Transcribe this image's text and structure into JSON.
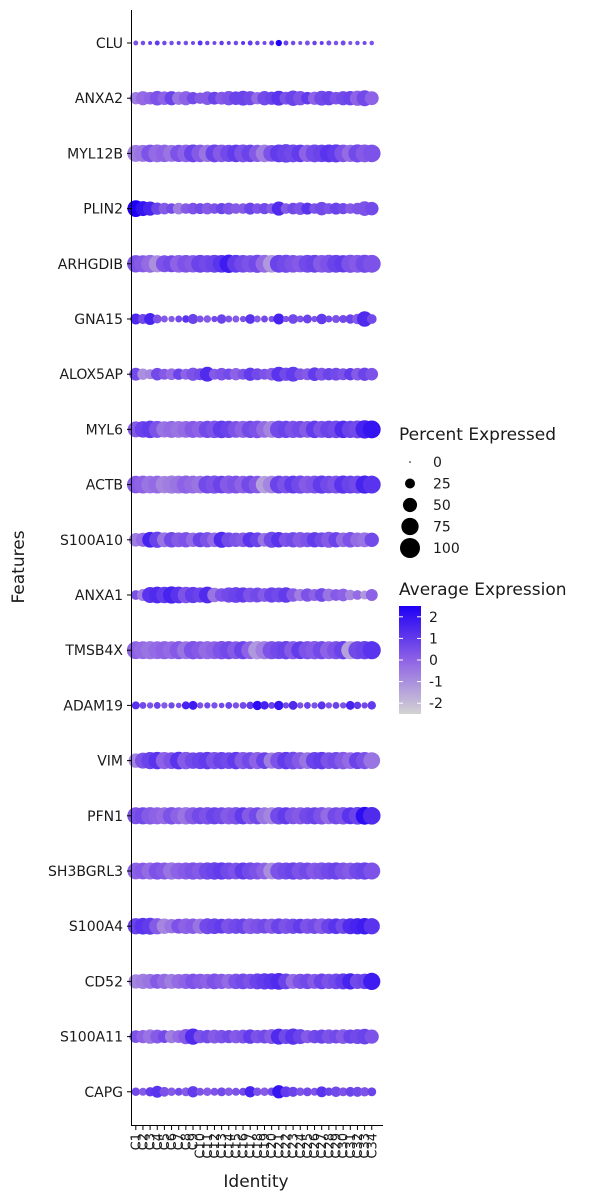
{
  "chart_data": {
    "type": "dotplot",
    "xlabel": "Identity",
    "ylabel": "Features",
    "x": [
      "C1",
      "C2",
      "C3",
      "C4",
      "C5",
      "C6",
      "C7",
      "C8",
      "C9",
      "C10",
      "C11",
      "C12",
      "C13",
      "C14",
      "C15",
      "C16",
      "C17",
      "C18",
      "C19",
      "C20",
      "C21",
      "C22",
      "C23",
      "C24",
      "C25",
      "C26",
      "C27",
      "C28",
      "C29",
      "C30",
      "C31",
      "C32",
      "C33",
      "C34"
    ],
    "features": [
      "CLU",
      "ANXA2",
      "MYL12B",
      "PLIN2",
      "ARHGDIB",
      "GNA15",
      "ALOX5AP",
      "MYL6",
      "ACTB",
      "S100A10",
      "ANXA1",
      "TMSB4X",
      "ADAM19",
      "VIM",
      "PFN1",
      "SH3BGRL3",
      "S100A4",
      "CD52",
      "S100A11",
      "CAPG"
    ],
    "size_legend": {
      "title": "Percent Expressed",
      "breaks": [
        0,
        25,
        50,
        75,
        100
      ],
      "labels": [
        "0",
        "25",
        "50",
        "75",
        "100"
      ]
    },
    "color_legend": {
      "title": "Average Expression",
      "range": [
        -2.5,
        2.5
      ],
      "breaks": [
        2,
        1,
        0,
        -1,
        -2
      ],
      "labels": [
        "2",
        "1",
        "0",
        "-1",
        "-2"
      ],
      "low_color": "#d3d3d3",
      "high_color": "#1f00f5"
    },
    "pct_expressed": [
      [
        6,
        5,
        4,
        6,
        5,
        5,
        4,
        5,
        4,
        6,
        5,
        4,
        5,
        4,
        5,
        4,
        6,
        5,
        4,
        6,
        10,
        6,
        5,
        4,
        6,
        5,
        4,
        6,
        5,
        6,
        4,
        5,
        4,
        5
      ],
      [
        38,
        50,
        40,
        54,
        46,
        50,
        44,
        50,
        38,
        32,
        46,
        42,
        42,
        52,
        46,
        56,
        50,
        38,
        52,
        44,
        56,
        42,
        60,
        52,
        40,
        44,
        56,
        52,
        40,
        50,
        52,
        58,
        64,
        48
      ],
      [
        72,
        72,
        78,
        80,
        76,
        72,
        74,
        78,
        80,
        78,
        74,
        80,
        78,
        74,
        78,
        80,
        76,
        74,
        78,
        70,
        80,
        86,
        80,
        78,
        74,
        80,
        76,
        80,
        82,
        78,
        74,
        82,
        80,
        78
      ],
      [
        70,
        56,
        50,
        38,
        34,
        28,
        34,
        28,
        34,
        30,
        34,
        28,
        32,
        36,
        28,
        28,
        36,
        28,
        32,
        28,
        50,
        28,
        34,
        40,
        36,
        28,
        46,
        30,
        36,
        32,
        28,
        34,
        54,
        46
      ],
      [
        76,
        74,
        80,
        74,
        72,
        72,
        78,
        78,
        76,
        80,
        76,
        80,
        78,
        84,
        80,
        78,
        76,
        82,
        80,
        78,
        80,
        82,
        78,
        74,
        80,
        80,
        78,
        82,
        80,
        76,
        82,
        80,
        82,
        80
      ],
      [
        30,
        26,
        36,
        20,
        12,
        10,
        12,
        14,
        26,
        12,
        14,
        10,
        22,
        12,
        12,
        10,
        24,
        12,
        12,
        10,
        30,
        10,
        24,
        12,
        20,
        10,
        28,
        12,
        16,
        16,
        22,
        28,
        60,
        24
      ],
      [
        42,
        32,
        26,
        40,
        30,
        34,
        32,
        30,
        44,
        36,
        56,
        30,
        40,
        32,
        38,
        30,
        44,
        36,
        30,
        40,
        56,
        44,
        56,
        34,
        36,
        46,
        42,
        38,
        42,
        36,
        38,
        40,
        44,
        40
      ],
      [
        64,
        68,
        76,
        72,
        66,
        72,
        70,
        70,
        72,
        70,
        74,
        76,
        78,
        74,
        70,
        72,
        74,
        78,
        70,
        72,
        78,
        74,
        74,
        72,
        70,
        76,
        72,
        76,
        78,
        76,
        74,
        80,
        84,
        80
      ],
      [
        78,
        80,
        78,
        80,
        76,
        82,
        80,
        82,
        80,
        78,
        80,
        82,
        78,
        82,
        80,
        78,
        80,
        78,
        76,
        78,
        80,
        78,
        80,
        82,
        78,
        80,
        82,
        78,
        80,
        82,
        80,
        80,
        82,
        80
      ],
      [
        46,
        50,
        62,
        66,
        56,
        60,
        56,
        58,
        52,
        56,
        58,
        54,
        64,
        56,
        52,
        54,
        58,
        56,
        48,
        64,
        60,
        52,
        58,
        60,
        56,
        58,
        56,
        64,
        58,
        54,
        60,
        54,
        56,
        52
      ],
      [
        24,
        36,
        64,
        70,
        68,
        74,
        70,
        68,
        66,
        58,
        70,
        52,
        46,
        58,
        62,
        58,
        54,
        56,
        48,
        58,
        56,
        60,
        46,
        38,
        44,
        36,
        48,
        40,
        34,
        40,
        28,
        24,
        20,
        36
      ],
      [
        80,
        80,
        82,
        80,
        82,
        80,
        82,
        80,
        84,
        80,
        82,
        80,
        84,
        82,
        80,
        82,
        80,
        84,
        82,
        82,
        80,
        84,
        82,
        80,
        82,
        84,
        82,
        80,
        82,
        84,
        82,
        82,
        84,
        82
      ],
      [
        16,
        12,
        10,
        12,
        10,
        10,
        8,
        16,
        20,
        10,
        10,
        10,
        8,
        12,
        10,
        12,
        14,
        22,
        18,
        12,
        22,
        10,
        20,
        10,
        12,
        10,
        16,
        10,
        12,
        10,
        20,
        14,
        10,
        18
      ],
      [
        52,
        64,
        74,
        76,
        74,
        70,
        78,
        76,
        68,
        72,
        76,
        74,
        74,
        70,
        76,
        74,
        72,
        74,
        70,
        66,
        74,
        76,
        78,
        72,
        70,
        74,
        76,
        70,
        74,
        76,
        70,
        72,
        74,
        70
      ],
      [
        72,
        74,
        76,
        74,
        72,
        76,
        72,
        76,
        74,
        72,
        76,
        74,
        72,
        74,
        76,
        74,
        72,
        74,
        72,
        72,
        76,
        74,
        72,
        74,
        72,
        74,
        76,
        72,
        74,
        76,
        72,
        78,
        80,
        78
      ],
      [
        70,
        70,
        72,
        74,
        72,
        74,
        70,
        72,
        74,
        72,
        74,
        76,
        74,
        72,
        70,
        72,
        74,
        72,
        70,
        70,
        74,
        72,
        74,
        76,
        72,
        70,
        74,
        72,
        74,
        72,
        70,
        72,
        74,
        72
      ],
      [
        66,
        70,
        72,
        66,
        60,
        52,
        56,
        62,
        60,
        58,
        64,
        62,
        56,
        60,
        58,
        60,
        62,
        58,
        56,
        58,
        62,
        60,
        58,
        56,
        58,
        60,
        62,
        60,
        62,
        60,
        64,
        66,
        68,
        66
      ],
      [
        52,
        58,
        56,
        54,
        58,
        56,
        54,
        58,
        60,
        58,
        56,
        62,
        58,
        56,
        60,
        62,
        58,
        64,
        66,
        66,
        70,
        62,
        56,
        58,
        60,
        56,
        62,
        58,
        62,
        64,
        66,
        58,
        60,
        74
      ],
      [
        40,
        44,
        52,
        48,
        42,
        44,
        42,
        58,
        66,
        44,
        46,
        48,
        46,
        44,
        46,
        48,
        52,
        46,
        48,
        56,
        64,
        56,
        66,
        56,
        44,
        46,
        50,
        52,
        48,
        54,
        50,
        56,
        62,
        50
      ],
      [
        18,
        16,
        22,
        36,
        24,
        18,
        16,
        20,
        32,
        16,
        18,
        16,
        20,
        18,
        16,
        16,
        32,
        18,
        18,
        18,
        44,
        30,
        26,
        18,
        20,
        16,
        30,
        18,
        28,
        20,
        24,
        26,
        22,
        20
      ]
    ],
    "avg_expression": [
      [
        0.4,
        0.5,
        0.8,
        1.0,
        0.6,
        0.5,
        0.8,
        0.5,
        0.6,
        1.2,
        0.7,
        0.6,
        1.0,
        0.8,
        0.6,
        1.2,
        1.0,
        0.7,
        0.6,
        1.0,
        2.5,
        0.8,
        0.6,
        0.5,
        0.4,
        0.8,
        1.0,
        0.5,
        0.4,
        0.6,
        0.4,
        0.5,
        0.6,
        0.4
      ],
      [
        -0.6,
        -0.2,
        0.0,
        0.4,
        0.0,
        0.8,
        -0.4,
        0.0,
        0.6,
        0.2,
        0.2,
        0.8,
        0.2,
        0.4,
        0.8,
        0.8,
        0.6,
        -0.2,
        0.6,
        0.8,
        1.2,
        0.4,
        0.8,
        0.4,
        1.0,
        0.0,
        0.6,
        0.8,
        0.4,
        0.6,
        0.8,
        0.0,
        0.6,
        0.0
      ],
      [
        -0.6,
        -0.4,
        0.4,
        -0.2,
        0.0,
        -0.4,
        0.4,
        0.0,
        0.8,
        0.2,
        -0.4,
        0.8,
        0.2,
        0.6,
        1.0,
        0.4,
        0.8,
        0.2,
        -0.6,
        0.4,
        1.0,
        0.8,
        0.6,
        1.0,
        0.0,
        0.6,
        0.8,
        1.2,
        1.0,
        0.4,
        -0.2,
        0.6,
        0.2,
        0.4
      ],
      [
        2.5,
        2.0,
        1.6,
        0.8,
        0.2,
        0.6,
        -0.6,
        0.2,
        0.4,
        0.6,
        0.2,
        0.4,
        0.8,
        0.4,
        0.2,
        0.2,
        0.8,
        0.4,
        0.6,
        0.2,
        1.4,
        0.2,
        0.6,
        0.4,
        1.2,
        0.4,
        0.6,
        0.4,
        0.8,
        0.6,
        0.2,
        0.4,
        0.4,
        0.6
      ],
      [
        0.4,
        0.2,
        -0.2,
        -1.0,
        0.4,
        0.6,
        0.0,
        0.4,
        0.2,
        0.8,
        0.6,
        0.8,
        1.2,
        1.8,
        1.0,
        0.6,
        0.4,
        0.6,
        -0.2,
        -1.2,
        0.8,
        0.6,
        0.4,
        0.2,
        0.6,
        0.8,
        0.2,
        0.4,
        0.8,
        1.0,
        0.4,
        0.2,
        0.6,
        0.4
      ],
      [
        1.4,
        0.6,
        1.6,
        0.4,
        0.2,
        0.2,
        0.6,
        1.2,
        0.8,
        0.4,
        0.2,
        0.6,
        0.8,
        0.4,
        0.2,
        0.4,
        1.2,
        0.2,
        0.6,
        0.4,
        1.6,
        0.4,
        0.6,
        0.4,
        0.8,
        0.4,
        1.0,
        0.6,
        0.4,
        0.6,
        0.8,
        0.2,
        1.4,
        0.6
      ],
      [
        0.6,
        -1.0,
        -0.8,
        0.6,
        0.2,
        -0.2,
        0.8,
        0.0,
        0.4,
        0.6,
        1.4,
        0.2,
        0.4,
        0.6,
        0.0,
        0.4,
        1.0,
        0.6,
        0.4,
        0.2,
        1.2,
        0.6,
        1.0,
        0.4,
        0.2,
        1.0,
        0.4,
        0.8,
        0.6,
        0.4,
        1.0,
        0.2,
        0.8,
        0.4
      ],
      [
        0.2,
        0.8,
        1.0,
        0.4,
        -0.4,
        -0.2,
        -0.4,
        -0.2,
        0.2,
        0.0,
        0.6,
        0.4,
        1.0,
        0.8,
        0.4,
        0.0,
        0.6,
        0.4,
        -0.2,
        -0.8,
        0.6,
        0.8,
        0.4,
        0.6,
        0.2,
        1.0,
        0.4,
        0.8,
        0.6,
        1.4,
        0.8,
        0.6,
        1.6,
        2.0
      ],
      [
        0.2,
        0.0,
        -0.4,
        -0.2,
        -0.8,
        -0.6,
        -0.4,
        0.0,
        -0.2,
        -0.4,
        0.6,
        0.4,
        0.8,
        0.2,
        0.4,
        0.0,
        0.6,
        0.2,
        -1.4,
        -0.8,
        0.8,
        0.4,
        1.0,
        0.6,
        0.2,
        0.4,
        1.0,
        0.6,
        0.4,
        1.2,
        0.8,
        0.6,
        1.6,
        1.2
      ],
      [
        -0.6,
        -0.2,
        1.6,
        0.8,
        -0.4,
        0.6,
        0.2,
        0.4,
        -0.2,
        0.8,
        0.4,
        -0.2,
        1.4,
        0.6,
        0.4,
        0.2,
        1.2,
        0.8,
        -0.4,
        0.6,
        1.2,
        0.4,
        0.6,
        0.2,
        0.4,
        1.0,
        0.6,
        0.2,
        0.8,
        -0.2,
        0.4,
        -0.2,
        -0.4,
        0.6
      ],
      [
        0.4,
        -0.6,
        1.2,
        1.4,
        1.0,
        1.6,
        1.2,
        0.4,
        1.0,
        0.8,
        1.4,
        -0.4,
        0.4,
        0.6,
        0.8,
        1.0,
        0.4,
        0.6,
        0.2,
        0.8,
        0.6,
        1.0,
        0.2,
        -0.6,
        0.4,
        0.0,
        0.6,
        -0.4,
        0.2,
        0.0,
        -0.8,
        -0.2,
        -1.2,
        0.0
      ],
      [
        0.0,
        -0.2,
        -0.4,
        -0.2,
        0.0,
        -0.2,
        0.2,
        -0.4,
        0.4,
        0.2,
        -0.2,
        0.0,
        0.4,
        0.6,
        0.2,
        0.8,
        0.0,
        -1.2,
        -0.6,
        0.4,
        0.6,
        0.8,
        0.2,
        1.0,
        0.4,
        0.2,
        0.6,
        0.0,
        0.4,
        0.8,
        -1.4,
        0.6,
        0.8,
        1.2
      ],
      [
        1.2,
        0.6,
        0.4,
        0.8,
        0.2,
        0.6,
        0.4,
        1.6,
        1.8,
        0.4,
        0.6,
        0.4,
        0.6,
        0.8,
        0.4,
        0.6,
        1.0,
        2.2,
        1.6,
        0.8,
        2.0,
        0.6,
        1.4,
        0.4,
        0.8,
        0.4,
        1.2,
        0.4,
        0.8,
        0.4,
        1.6,
        1.0,
        0.6,
        1.0
      ],
      [
        -0.8,
        0.4,
        0.8,
        1.2,
        0.0,
        0.4,
        1.2,
        0.2,
        0.6,
        0.8,
        1.0,
        0.4,
        0.8,
        0.6,
        1.0,
        0.2,
        0.6,
        0.0,
        0.8,
        -0.6,
        0.4,
        1.0,
        0.6,
        0.2,
        -0.4,
        0.8,
        1.0,
        0.4,
        0.6,
        0.2,
        -0.2,
        0.8,
        0.4,
        -0.4
      ],
      [
        0.4,
        0.6,
        0.2,
        0.0,
        -0.2,
        0.4,
        0.0,
        -0.4,
        0.2,
        0.6,
        0.4,
        0.8,
        0.6,
        0.2,
        0.4,
        1.0,
        0.2,
        0.6,
        -0.4,
        -0.8,
        0.6,
        1.0,
        0.4,
        0.2,
        0.6,
        0.8,
        0.4,
        -0.2,
        0.6,
        0.4,
        1.2,
        0.8,
        2.2,
        1.4
      ],
      [
        0.0,
        0.2,
        -0.2,
        0.4,
        0.2,
        -0.4,
        0.0,
        0.2,
        0.4,
        0.2,
        0.6,
        0.8,
        1.0,
        0.6,
        0.4,
        1.0,
        0.6,
        0.4,
        0.0,
        -1.0,
        0.4,
        0.6,
        0.8,
        0.4,
        0.6,
        0.2,
        0.4,
        0.6,
        0.8,
        0.4,
        0.2,
        0.6,
        0.8,
        0.4
      ],
      [
        0.8,
        1.2,
        1.0,
        0.2,
        -0.8,
        -0.4,
        0.4,
        0.0,
        0.2,
        -0.4,
        0.6,
        0.8,
        1.0,
        0.4,
        0.6,
        0.8,
        0.2,
        0.4,
        0.6,
        0.2,
        0.8,
        0.4,
        0.6,
        1.0,
        0.4,
        0.6,
        0.2,
        0.8,
        1.2,
        0.6,
        1.4,
        1.6,
        1.8,
        1.2
      ],
      [
        -0.8,
        -0.6,
        -0.4,
        0.2,
        -0.2,
        -0.6,
        -0.2,
        0.0,
        0.4,
        0.2,
        0.0,
        0.4,
        0.2,
        -0.2,
        0.4,
        0.6,
        0.4,
        0.8,
        1.0,
        1.2,
        1.4,
        0.8,
        -0.2,
        0.4,
        0.6,
        0.2,
        0.8,
        0.4,
        0.6,
        1.0,
        1.6,
        0.6,
        0.8,
        1.8
      ],
      [
        0.4,
        0.0,
        -0.4,
        0.2,
        0.6,
        -0.6,
        -0.2,
        0.2,
        1.4,
        0.4,
        0.6,
        0.2,
        0.4,
        0.6,
        0.2,
        0.4,
        1.0,
        0.4,
        0.6,
        0.2,
        1.4,
        0.6,
        1.2,
        0.8,
        0.2,
        0.6,
        0.8,
        0.4,
        0.6,
        0.2,
        0.8,
        0.6,
        0.8,
        0.4
      ],
      [
        0.6,
        0.2,
        1.0,
        1.2,
        0.4,
        0.2,
        0.6,
        0.2,
        1.0,
        0.4,
        0.2,
        0.4,
        0.6,
        0.2,
        0.4,
        0.6,
        1.6,
        0.4,
        0.2,
        0.6,
        2.0,
        1.0,
        0.8,
        0.4,
        0.6,
        0.4,
        1.2,
        0.8,
        0.6,
        0.4,
        0.8,
        0.6,
        0.4,
        0.8
      ]
    ]
  }
}
